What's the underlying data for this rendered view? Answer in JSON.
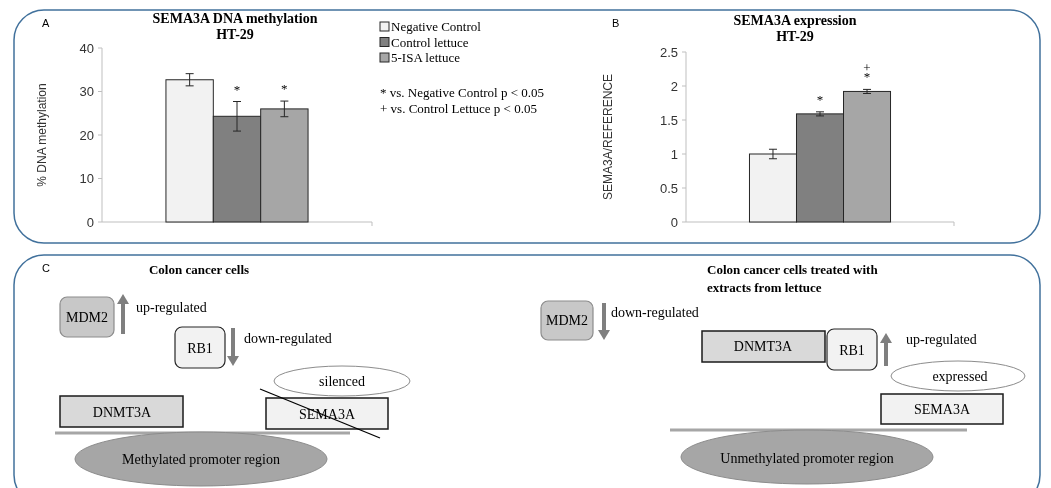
{
  "chart_data": [
    {
      "type": "bar",
      "title": "SEMA3A DNA methylation\nHT-29",
      "ylabel": "% DNA methylation",
      "categories": [
        null
      ],
      "ylim": [
        0,
        40
      ],
      "yticks": [
        0,
        10,
        20,
        30,
        40
      ],
      "legend": "right",
      "annotations": [
        "A",
        "* vs. Negative Control p < 0.05",
        "+ vs. Control Lettuce p < 0.05"
      ],
      "series": [
        {
          "name": "Negative Control",
          "color": "#f2f2f2",
          "values": [
            32.7
          ],
          "errors": [
            1.4
          ]
        },
        {
          "name": "Control lettuce",
          "color": "#808080",
          "values": [
            24.3
          ],
          "errors": [
            3.4
          ],
          "value_labels": [
            "*"
          ]
        },
        {
          "name": "5-ISA lettuce",
          "color": "#a6a6a6",
          "values": [
            26.0
          ],
          "errors": [
            1.8
          ],
          "value_labels": [
            "*"
          ]
        }
      ]
    },
    {
      "type": "bar",
      "title": "SEMA3A expression\nHT-29",
      "ylabel": "SEMA3A/REFERENCE",
      "categories": [
        null
      ],
      "ylim": [
        0,
        2.5
      ],
      "yticks": [
        0,
        0.5,
        1,
        1.5,
        2,
        2.5
      ],
      "annotations": [
        "B"
      ],
      "series": [
        {
          "color": "#f2f2f2",
          "values": [
            1.0
          ],
          "errors": [
            0.07
          ]
        },
        {
          "color": "#808080",
          "values": [
            1.59
          ],
          "errors": [
            0.03
          ],
          "value_labels": [
            "*"
          ]
        },
        {
          "color": "#a6a6a6",
          "values": [
            1.92
          ],
          "errors": [
            0.03
          ],
          "value_labels": [
            "+\n*"
          ]
        }
      ]
    },
    {
      "type": "other",
      "annotations": [
        "C",
        "Colon cancer cells",
        "MDM2",
        "up-regulated",
        "RB1",
        "down-regulated",
        "silenced",
        "DNMT3A",
        "SEMA3A",
        "Methylated promoter region",
        "Colon cancer cells treated with\nextracts from lettuce",
        "MDM2",
        "down-regulated",
        "DNMT3A",
        "RB1",
        "up-regulated",
        "expressed",
        "SEMA3A",
        "Unmethylated promoter region"
      ]
    }
  ]
}
